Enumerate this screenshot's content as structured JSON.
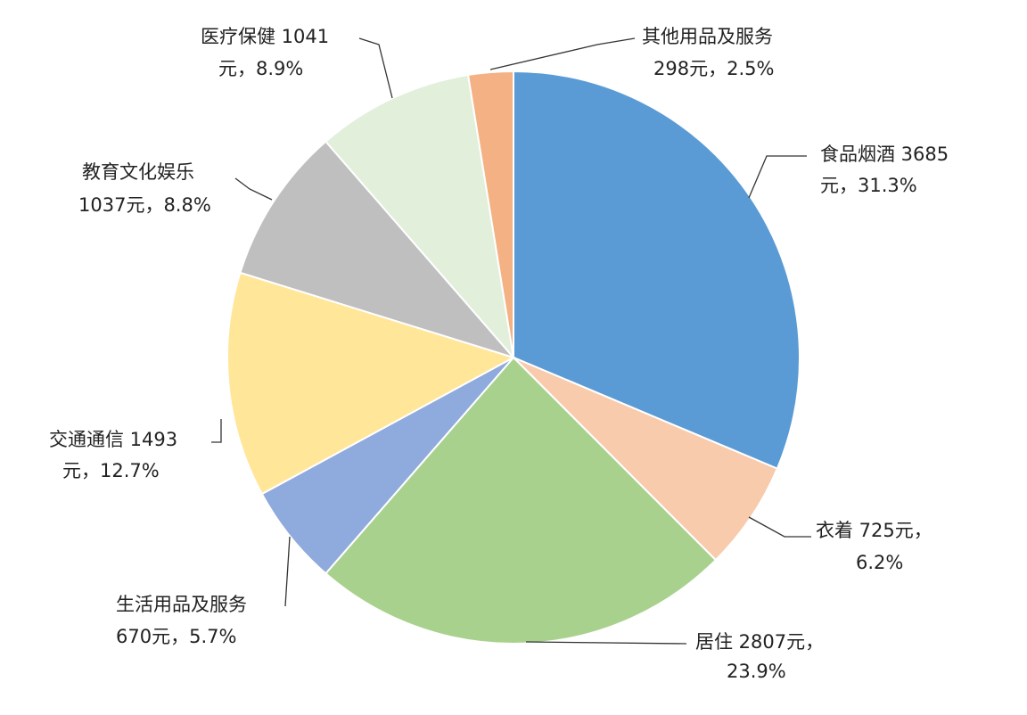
{
  "chart_data": {
    "type": "pie",
    "start_angle_deg": 0,
    "direction": "clockwise",
    "slices": [
      {
        "name": "食品烟酒",
        "value": 3685,
        "percent": 31.3,
        "color": "#5B9BD5",
        "label_lines": [
          "食品烟酒 3685",
          "元，31.3%"
        ]
      },
      {
        "name": "衣着",
        "value": 725,
        "percent": 6.2,
        "color": "#F8CBAD",
        "label_lines": [
          "衣着 725元，",
          "6.2%"
        ]
      },
      {
        "name": "居住",
        "value": 2807,
        "percent": 23.9,
        "color": "#A9D18E",
        "label_lines": [
          "居住 2807元，",
          "23.9%"
        ]
      },
      {
        "name": "生活用品及服务",
        "value": 670,
        "percent": 5.7,
        "color": "#8FAADC",
        "label_lines": [
          "生活用品及服务",
          "670元，5.7%"
        ]
      },
      {
        "name": "交通通信",
        "value": 1493,
        "percent": 12.7,
        "color": "#FFE699",
        "label_lines": [
          "交通通信 1493",
          "元，12.7%"
        ]
      },
      {
        "name": "教育文化娱乐",
        "value": 1037,
        "percent": 8.8,
        "color": "#BFBFBF",
        "label_lines": [
          "教育文化娱乐",
          "1037元，8.8%"
        ]
      },
      {
        "name": "医疗保健",
        "value": 1041,
        "percent": 8.9,
        "color": "#E2EFDA",
        "label_lines": [
          "医疗保健 1041",
          "元，8.9%"
        ]
      },
      {
        "name": "其他用品及服务",
        "value": 298,
        "percent": 2.5,
        "color": "#F4B183",
        "label_lines": [
          "其他用品及服务",
          "298元，2.5%"
        ]
      }
    ]
  }
}
